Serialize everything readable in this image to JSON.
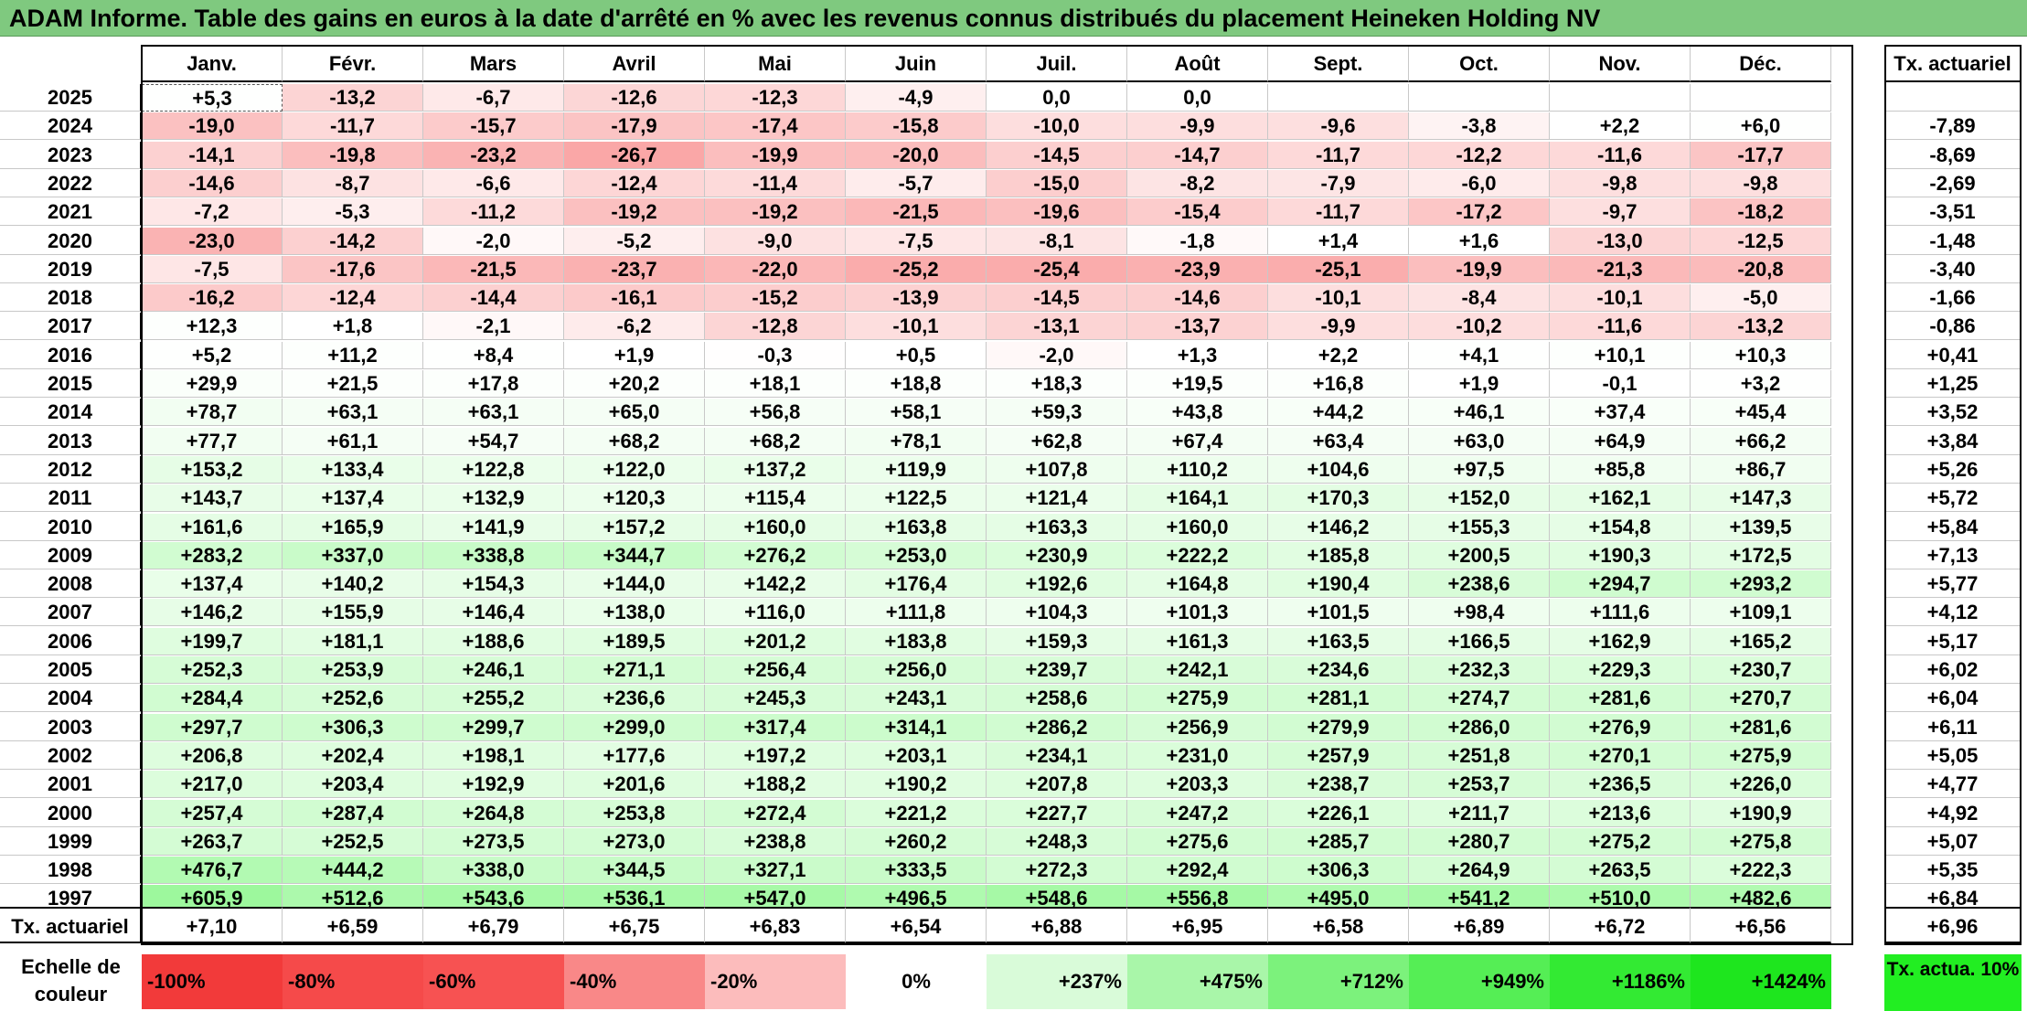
{
  "title": "ADAM Informe. Table des gains en euros à la date d'arrêté en % avec les revenus connus distribués du placement Heineken Holding NV",
  "chart_data": {
    "type": "table",
    "columns": [
      "Janv.",
      "Févr.",
      "Mars",
      "Avril",
      "Mai",
      "Juin",
      "Juil.",
      "Août",
      "Sept.",
      "Oct.",
      "Nov.",
      "Déc."
    ],
    "rate_header": "Tx. actuariel",
    "rows": [
      {
        "year": "2025",
        "values": [
          "+5,3",
          "-13,2",
          "-6,7",
          "-12,6",
          "-12,3",
          "-4,9",
          "0,0",
          "0,0",
          "",
          "",
          "",
          ""
        ],
        "rate": ""
      },
      {
        "year": "2024",
        "values": [
          "-19,0",
          "-11,7",
          "-15,7",
          "-17,9",
          "-17,4",
          "-15,8",
          "-10,0",
          "-9,9",
          "-9,6",
          "-3,8",
          "+2,2",
          "+6,0"
        ],
        "rate": "-7,89"
      },
      {
        "year": "2023",
        "values": [
          "-14,1",
          "-19,8",
          "-23,2",
          "-26,7",
          "-19,9",
          "-20,0",
          "-14,5",
          "-14,7",
          "-11,7",
          "-12,2",
          "-11,6",
          "-17,7"
        ],
        "rate": "-8,69"
      },
      {
        "year": "2022",
        "values": [
          "-14,6",
          "-8,7",
          "-6,6",
          "-12,4",
          "-11,4",
          "-5,7",
          "-15,0",
          "-8,2",
          "-7,9",
          "-6,0",
          "-9,8",
          "-9,8"
        ],
        "rate": "-2,69"
      },
      {
        "year": "2021",
        "values": [
          "-7,2",
          "-5,3",
          "-11,2",
          "-19,2",
          "-19,2",
          "-21,5",
          "-19,6",
          "-15,4",
          "-11,7",
          "-17,2",
          "-9,7",
          "-18,2"
        ],
        "rate": "-3,51"
      },
      {
        "year": "2020",
        "values": [
          "-23,0",
          "-14,2",
          "-2,0",
          "-5,2",
          "-9,0",
          "-7,5",
          "-8,1",
          "-1,8",
          "+1,4",
          "+1,6",
          "-13,0",
          "-12,5"
        ],
        "rate": "-1,48"
      },
      {
        "year": "2019",
        "values": [
          "-7,5",
          "-17,6",
          "-21,5",
          "-23,7",
          "-22,0",
          "-25,2",
          "-25,4",
          "-23,9",
          "-25,1",
          "-19,9",
          "-21,3",
          "-20,8"
        ],
        "rate": "-3,40"
      },
      {
        "year": "2018",
        "values": [
          "-16,2",
          "-12,4",
          "-14,4",
          "-16,1",
          "-15,2",
          "-13,9",
          "-14,5",
          "-14,6",
          "-10,1",
          "-8,4",
          "-10,1",
          "-5,0"
        ],
        "rate": "-1,66"
      },
      {
        "year": "2017",
        "values": [
          "+12,3",
          "+1,8",
          "-2,1",
          "-6,2",
          "-12,8",
          "-10,1",
          "-13,1",
          "-13,7",
          "-9,9",
          "-10,2",
          "-11,6",
          "-13,2"
        ],
        "rate": "-0,86"
      },
      {
        "year": "2016",
        "values": [
          "+5,2",
          "+11,2",
          "+8,4",
          "+1,9",
          "-0,3",
          "+0,5",
          "-2,0",
          "+1,3",
          "+2,2",
          "+4,1",
          "+10,1",
          "+10,3"
        ],
        "rate": "+0,41"
      },
      {
        "year": "2015",
        "values": [
          "+29,9",
          "+21,5",
          "+17,8",
          "+20,2",
          "+18,1",
          "+18,8",
          "+18,3",
          "+19,5",
          "+16,8",
          "+1,9",
          "-0,1",
          "+3,2"
        ],
        "rate": "+1,25"
      },
      {
        "year": "2014",
        "values": [
          "+78,7",
          "+63,1",
          "+63,1",
          "+65,0",
          "+56,8",
          "+58,1",
          "+59,3",
          "+43,8",
          "+44,2",
          "+46,1",
          "+37,4",
          "+45,4"
        ],
        "rate": "+3,52"
      },
      {
        "year": "2013",
        "values": [
          "+77,7",
          "+61,1",
          "+54,7",
          "+68,2",
          "+68,2",
          "+78,1",
          "+62,8",
          "+67,4",
          "+63,4",
          "+63,0",
          "+64,9",
          "+66,2"
        ],
        "rate": "+3,84"
      },
      {
        "year": "2012",
        "values": [
          "+153,2",
          "+133,4",
          "+122,8",
          "+122,0",
          "+137,2",
          "+119,9",
          "+107,8",
          "+110,2",
          "+104,6",
          "+97,5",
          "+85,8",
          "+86,7"
        ],
        "rate": "+5,26"
      },
      {
        "year": "2011",
        "values": [
          "+143,7",
          "+137,4",
          "+132,9",
          "+120,3",
          "+115,4",
          "+122,5",
          "+121,4",
          "+164,1",
          "+170,3",
          "+152,0",
          "+162,1",
          "+147,3"
        ],
        "rate": "+5,72"
      },
      {
        "year": "2010",
        "values": [
          "+161,6",
          "+165,9",
          "+141,9",
          "+157,2",
          "+160,0",
          "+163,8",
          "+163,3",
          "+160,0",
          "+146,2",
          "+155,3",
          "+154,8",
          "+139,5"
        ],
        "rate": "+5,84"
      },
      {
        "year": "2009",
        "values": [
          "+283,2",
          "+337,0",
          "+338,8",
          "+344,7",
          "+276,2",
          "+253,0",
          "+230,9",
          "+222,2",
          "+185,8",
          "+200,5",
          "+190,3",
          "+172,5"
        ],
        "rate": "+7,13"
      },
      {
        "year": "2008",
        "values": [
          "+137,4",
          "+140,2",
          "+154,3",
          "+144,0",
          "+142,2",
          "+176,4",
          "+192,6",
          "+164,8",
          "+190,4",
          "+238,6",
          "+294,7",
          "+293,2"
        ],
        "rate": "+5,77"
      },
      {
        "year": "2007",
        "values": [
          "+146,2",
          "+155,9",
          "+146,4",
          "+138,0",
          "+116,0",
          "+111,8",
          "+104,3",
          "+101,3",
          "+101,5",
          "+98,4",
          "+111,6",
          "+109,1"
        ],
        "rate": "+4,12"
      },
      {
        "year": "2006",
        "values": [
          "+199,7",
          "+181,1",
          "+188,6",
          "+189,5",
          "+201,2",
          "+183,8",
          "+159,3",
          "+161,3",
          "+163,5",
          "+166,5",
          "+162,9",
          "+165,2"
        ],
        "rate": "+5,17"
      },
      {
        "year": "2005",
        "values": [
          "+252,3",
          "+253,9",
          "+246,1",
          "+271,1",
          "+256,4",
          "+256,0",
          "+239,7",
          "+242,1",
          "+234,6",
          "+232,3",
          "+229,3",
          "+230,7"
        ],
        "rate": "+6,02"
      },
      {
        "year": "2004",
        "values": [
          "+284,4",
          "+252,6",
          "+255,2",
          "+236,6",
          "+245,3",
          "+243,1",
          "+258,6",
          "+275,9",
          "+281,1",
          "+274,7",
          "+281,6",
          "+270,7"
        ],
        "rate": "+6,04"
      },
      {
        "year": "2003",
        "values": [
          "+297,7",
          "+306,3",
          "+299,7",
          "+299,0",
          "+317,4",
          "+314,1",
          "+286,2",
          "+256,9",
          "+279,9",
          "+286,0",
          "+276,9",
          "+281,6"
        ],
        "rate": "+6,11"
      },
      {
        "year": "2002",
        "values": [
          "+206,8",
          "+202,4",
          "+198,1",
          "+177,6",
          "+197,2",
          "+203,1",
          "+234,1",
          "+231,0",
          "+257,9",
          "+251,8",
          "+270,1",
          "+275,9"
        ],
        "rate": "+5,05"
      },
      {
        "year": "2001",
        "values": [
          "+217,0",
          "+203,4",
          "+192,9",
          "+201,6",
          "+188,2",
          "+190,2",
          "+207,8",
          "+203,3",
          "+238,7",
          "+253,7",
          "+236,5",
          "+226,0"
        ],
        "rate": "+4,77"
      },
      {
        "year": "2000",
        "values": [
          "+257,4",
          "+287,4",
          "+264,8",
          "+253,8",
          "+272,4",
          "+221,2",
          "+227,7",
          "+247,2",
          "+226,1",
          "+211,7",
          "+213,6",
          "+190,9"
        ],
        "rate": "+4,92"
      },
      {
        "year": "1999",
        "values": [
          "+263,7",
          "+252,5",
          "+273,5",
          "+273,0",
          "+238,8",
          "+260,2",
          "+248,3",
          "+275,6",
          "+285,7",
          "+280,7",
          "+275,2",
          "+275,8"
        ],
        "rate": "+5,07"
      },
      {
        "year": "1998",
        "values": [
          "+476,7",
          "+444,2",
          "+338,0",
          "+344,5",
          "+327,1",
          "+333,5",
          "+272,3",
          "+292,4",
          "+306,3",
          "+264,9",
          "+263,5",
          "+222,3"
        ],
        "rate": "+5,35"
      },
      {
        "year": "1997",
        "values": [
          "+605,9",
          "+512,6",
          "+543,6",
          "+536,1",
          "+547,0",
          "+496,5",
          "+548,6",
          "+556,8",
          "+495,0",
          "+541,2",
          "+510,0",
          "+482,6"
        ],
        "rate": "+6,84"
      }
    ],
    "totals": {
      "label": "Tx. actuariel",
      "values": [
        "+7,10",
        "+6,59",
        "+6,79",
        "+6,75",
        "+6,83",
        "+6,54",
        "+6,88",
        "+6,95",
        "+6,58",
        "+6,89",
        "+6,72",
        "+6,56"
      ],
      "rate": "+6,96"
    },
    "legend": {
      "label": "Echelle de couleur",
      "steps": [
        {
          "label": "-100%",
          "color": "#f23a3a"
        },
        {
          "label": "-80%",
          "color": "#f54a4a"
        },
        {
          "label": "-60%",
          "color": "#f75252"
        },
        {
          "label": "-40%",
          "color": "#f98888"
        },
        {
          "label": "-20%",
          "color": "#fcbcbc"
        },
        {
          "label": "0%",
          "color": "#ffffff"
        },
        {
          "label": "+237%",
          "color": "#d9fbd9"
        },
        {
          "label": "+475%",
          "color": "#a9f6a9"
        },
        {
          "label": "+712%",
          "color": "#7cf27c"
        },
        {
          "label": "+949%",
          "color": "#55ee55"
        },
        {
          "label": "+1186%",
          "color": "#33ea33"
        },
        {
          "label": "+1424%",
          "color": "#1ee61e"
        }
      ],
      "rate_label": "Tx. actua. 10%"
    }
  }
}
